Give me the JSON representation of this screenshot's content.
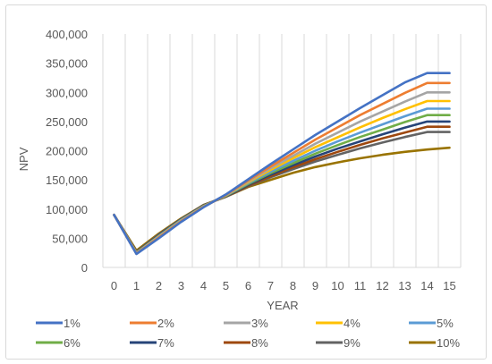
{
  "chart_data": {
    "type": "line",
    "title": "",
    "xlabel": "YEAR",
    "ylabel": "NPV",
    "x": [
      0,
      1,
      2,
      3,
      4,
      5,
      6,
      7,
      8,
      9,
      10,
      11,
      12,
      13,
      14,
      15
    ],
    "ylim": [
      0,
      400000
    ],
    "yticks": [
      0,
      50000,
      100000,
      150000,
      200000,
      250000,
      300000,
      350000,
      400000
    ],
    "ytick_labels": [
      "0",
      "50,000",
      "100,000",
      "150,000",
      "200,000",
      "250,000",
      "300,000",
      "350,000",
      "400,000"
    ],
    "xtick_labels": [
      "0",
      "1",
      "2",
      "3",
      "4",
      "5",
      "6",
      "7",
      "8",
      "9",
      "10",
      "11",
      "12",
      "13",
      "14",
      "15"
    ],
    "grid": {
      "vertical": true,
      "horizontal": false
    },
    "legend_position": "bottom",
    "series": [
      {
        "name": "1%",
        "color": "#4472c4",
        "values": [
          90000,
          23000,
          50000,
          78000,
          103000,
          125000,
          151000,
          177000,
          202000,
          227000,
          250000,
          273000,
          295000,
          317000,
          333000,
          333000
        ]
      },
      {
        "name": "2%",
        "color": "#ed7d31",
        "values": [
          90000,
          23500,
          51000,
          79000,
          103500,
          124500,
          149000,
          173000,
          196000,
          219000,
          240000,
          261000,
          280000,
          299000,
          316000,
          316000
        ]
      },
      {
        "name": "3%",
        "color": "#a5a5a5",
        "values": [
          90000,
          24000,
          52000,
          79500,
          104000,
          124000,
          147500,
          170000,
          191000,
          212000,
          231000,
          250000,
          267000,
          284000,
          300000,
          300000
        ]
      },
      {
        "name": "4%",
        "color": "#ffc000",
        "values": [
          90000,
          24500,
          52500,
          80000,
          104500,
          123500,
          146000,
          167000,
          187000,
          206000,
          223000,
          240000,
          256000,
          271000,
          285000,
          285000
        ]
      },
      {
        "name": "5%",
        "color": "#5b9bd5",
        "values": [
          90000,
          25000,
          53500,
          81000,
          105000,
          123000,
          144500,
          164000,
          182500,
          200000,
          216000,
          231000,
          245000,
          259000,
          272000,
          272000
        ]
      },
      {
        "name": "6%",
        "color": "#70ad47",
        "values": [
          90000,
          25500,
          54000,
          81500,
          105500,
          122500,
          143000,
          161500,
          178500,
          195000,
          209500,
          223500,
          236000,
          249000,
          261000,
          261000
        ]
      },
      {
        "name": "7%",
        "color": "#264478",
        "values": [
          90000,
          26000,
          55000,
          82000,
          106000,
          122000,
          141500,
          159000,
          175000,
          190000,
          203500,
          216000,
          228000,
          239500,
          250000,
          250000
        ]
      },
      {
        "name": "8%",
        "color": "#9e480e",
        "values": [
          90000,
          26500,
          55500,
          82500,
          106500,
          121500,
          140000,
          156500,
          171500,
          185500,
          198000,
          210000,
          221000,
          231000,
          241000,
          241000
        ]
      },
      {
        "name": "9%",
        "color": "#636363",
        "values": [
          90000,
          27000,
          56500,
          83000,
          107000,
          121000,
          139000,
          154500,
          168500,
          181500,
          193000,
          204000,
          214000,
          223500,
          232000,
          232000
        ]
      },
      {
        "name": "10%",
        "color": "#997300",
        "values": [
          90000,
          29000,
          58000,
          84000,
          107000,
          121000,
          138000,
          150000,
          162000,
          172000,
          180000,
          187000,
          193000,
          198000,
          202000,
          205000
        ]
      }
    ]
  }
}
